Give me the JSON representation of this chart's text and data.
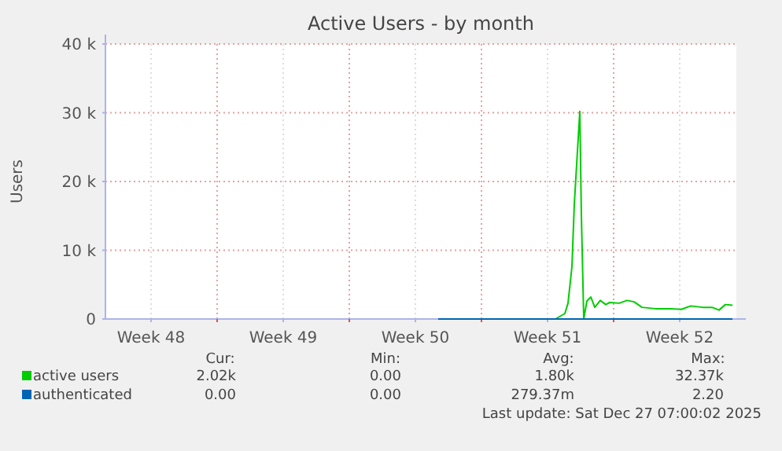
{
  "chart_data": {
    "type": "line",
    "title": "Active Users - by month",
    "ylabel": "Users",
    "xlim": [
      "2025-11-24T02:00",
      "2025-12-27T12:00"
    ],
    "ylim": [
      0,
      40000
    ],
    "xticks": [
      {
        "value": "2025-11-26T12:00",
        "label": "Week 48"
      },
      {
        "value": "2025-11-30",
        "label": null
      },
      {
        "value": "2025-12-03T12:00",
        "label": "Week 49"
      },
      {
        "value": "2025-12-07",
        "label": null
      },
      {
        "value": "2025-12-10T12:00",
        "label": "Week 50"
      },
      {
        "value": "2025-12-14",
        "label": null
      },
      {
        "value": "2025-12-17T12:00",
        "label": "Week 51"
      },
      {
        "value": "2025-12-21",
        "label": null
      },
      {
        "value": "2025-12-24T12:00",
        "label": "Week 52"
      }
    ],
    "yticks": [
      {
        "value": 0,
        "label": "0"
      },
      {
        "value": 10000,
        "label": "10 k"
      },
      {
        "value": 20000,
        "label": "20 k"
      },
      {
        "value": 30000,
        "label": "30 k"
      },
      {
        "value": 40000,
        "label": "40 k"
      }
    ],
    "grid": true,
    "legend": "bottom",
    "marker": "none",
    "line_style": "solid",
    "series": [
      {
        "name": "active users",
        "color": "#00cc00",
        "x": [
          "2025-12-17T22:00",
          "2025-12-18T10:00",
          "2025-12-18T14:00",
          "2025-12-18T19:00",
          "2025-12-18T22:00",
          "2025-12-19T05:00",
          "2025-12-19T07:00",
          "2025-12-19T10:00",
          "2025-12-19T14:00",
          "2025-12-19T19:00",
          "2025-12-20T00:00",
          "2025-12-20T07:00",
          "2025-12-20T14:00",
          "2025-12-20T19:00",
          "2025-12-21T07:00",
          "2025-12-21T17:00",
          "2025-12-22T02:00",
          "2025-12-22T12:00",
          "2025-12-23T05:00",
          "2025-12-24T00:00",
          "2025-12-24T14:00",
          "2025-12-25T02:00",
          "2025-12-25T17:00",
          "2025-12-26T05:00",
          "2025-12-26T14:00",
          "2025-12-26T22:00",
          "2025-12-27T07:00"
        ],
        "values": [
          0,
          800,
          2300,
          7600,
          16700,
          30200,
          15000,
          0,
          2600,
          3200,
          1700,
          2700,
          2100,
          2400,
          2300,
          2700,
          2500,
          1700,
          1500,
          1500,
          1400,
          1900,
          1700,
          1700,
          1300,
          2100,
          2000
        ]
      },
      {
        "name": "authenticated",
        "color": "#0066b3",
        "x": [
          "2025-12-11T17:00",
          "2025-12-27T07:00"
        ],
        "values": [
          0,
          0
        ]
      }
    ],
    "annotations": [
      "Cur:",
      "Min:",
      "Avg:",
      "Max:",
      "2.02k",
      "0.00",
      "1.80k",
      "32.37k",
      "0.00",
      "0.00",
      "279.37m",
      "2.20",
      "Last update: Sat Dec 27 07:00:02 2025"
    ]
  }
}
